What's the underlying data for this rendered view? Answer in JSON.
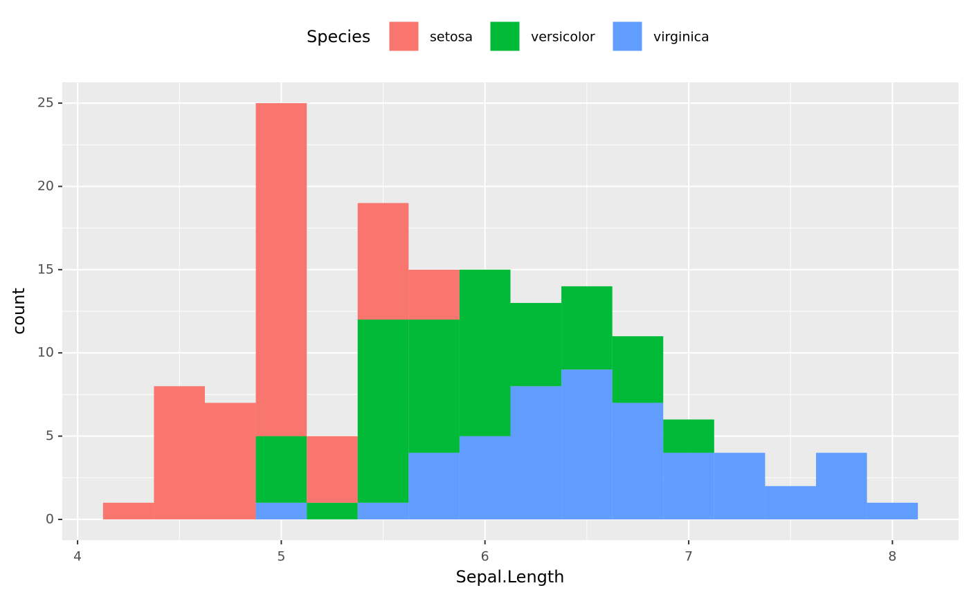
{
  "chart_data": {
    "type": "histogram",
    "x_label": "Sepal.Length",
    "y_label": "count",
    "legend_title": "Species",
    "legend_position": "top",
    "bins": [
      4.125,
      4.375,
      4.625,
      4.875,
      5.125,
      5.375,
      5.625,
      5.875,
      6.125,
      6.375,
      6.625,
      6.875,
      7.125,
      7.375,
      7.625,
      7.875,
      8.125
    ],
    "series": [
      {
        "name": "setosa",
        "color": "#F8766D",
        "values": [
          1,
          8,
          7,
          20,
          4,
          7,
          3,
          0,
          0,
          0,
          0,
          0,
          0,
          0,
          0,
          0
        ]
      },
      {
        "name": "versicolor",
        "color": "#00BA38",
        "values": [
          0,
          0,
          0,
          4,
          1,
          11,
          8,
          10,
          5,
          5,
          4,
          2,
          0,
          0,
          0,
          0
        ]
      },
      {
        "name": "virginica",
        "color": "#619CFF",
        "values": [
          0,
          0,
          0,
          1,
          0,
          1,
          4,
          5,
          8,
          9,
          7,
          4,
          4,
          2,
          4,
          1
        ]
      }
    ],
    "stacked": true,
    "xlim": [
      3.925,
      8.325
    ],
    "xticks": [
      4,
      5,
      6,
      7,
      8
    ],
    "ylim": [
      -1.25,
      26.25
    ],
    "yticks": [
      0,
      5,
      10,
      15,
      20,
      25
    ],
    "grid": true,
    "minor_grid": true
  }
}
